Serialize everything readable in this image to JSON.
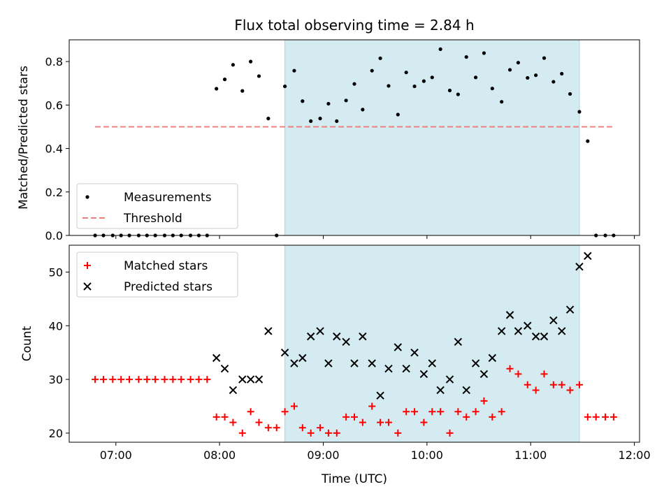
{
  "figure": {
    "title": "Flux total observing time = 2.84 h",
    "xlabel": "Time (UTC)"
  },
  "colors": {
    "band": "#d4ebf1",
    "band_edge": "#a8d5e0",
    "measurement": "#000000",
    "threshold": "#f08080",
    "matched": "#ff0000",
    "predicted": "#000000"
  },
  "chart_data": [
    {
      "type": "scatter",
      "name": "ratio-panel",
      "title": "Flux total observing time = 2.84 h",
      "ylabel": "Matched/Predicted stars",
      "xlim": [
        6.55,
        12.05
      ],
      "ylim": [
        0.0,
        0.9
      ],
      "xticks": [
        7,
        8,
        9,
        10,
        11,
        12
      ],
      "xtick_labels": [
        "07:00",
        "08:00",
        "09:00",
        "10:00",
        "11:00",
        "12:00"
      ],
      "yticks": [
        0.0,
        0.2,
        0.4,
        0.6,
        0.8
      ],
      "ytick_labels": [
        "0.0",
        "0.2",
        "0.4",
        "0.6",
        "0.8"
      ],
      "band": [
        8.63,
        11.47
      ],
      "legend": {
        "position": "lower-left",
        "entries": [
          "Measurements",
          "Threshold"
        ]
      },
      "threshold": {
        "name": "Threshold",
        "x": [
          6.8,
          11.8
        ],
        "y": 0.5
      },
      "series": [
        {
          "name": "Measurements",
          "marker": "dot",
          "x": [
            6.8,
            6.88,
            6.97,
            7.05,
            7.13,
            7.22,
            7.3,
            7.38,
            7.47,
            7.55,
            7.63,
            7.72,
            7.8,
            7.88,
            7.97,
            8.05,
            8.13,
            8.22,
            8.3,
            8.38,
            8.47,
            8.55,
            8.63,
            8.72,
            8.8,
            8.88,
            8.97,
            9.05,
            9.13,
            9.22,
            9.3,
            9.38,
            9.47,
            9.55,
            9.63,
            9.72,
            9.8,
            9.88,
            9.97,
            10.05,
            10.13,
            10.22,
            10.3,
            10.38,
            10.47,
            10.55,
            10.63,
            10.72,
            10.8,
            10.88,
            10.97,
            11.05,
            11.13,
            11.22,
            11.3,
            11.38,
            11.47,
            11.55,
            11.63,
            11.72,
            11.8
          ],
          "y": [
            0,
            0,
            0,
            0,
            0,
            0,
            0,
            0,
            0,
            0,
            0,
            0,
            0,
            0,
            0.675,
            0.718,
            0.785,
            0.665,
            0.8,
            0.733,
            0.538,
            0.0,
            0.686,
            0.758,
            0.618,
            0.526,
            0.538,
            0.606,
            0.526,
            0.621,
            0.697,
            0.579,
            0.758,
            0.815,
            0.688,
            0.556,
            0.75,
            0.686,
            0.71,
            0.727,
            0.857,
            0.667,
            0.649,
            0.821,
            0.727,
            0.839,
            0.676,
            0.615,
            0.762,
            0.795,
            0.725,
            0.737,
            0.816,
            0.707,
            0.744,
            0.651,
            0.569,
            0.434,
            0,
            0,
            0
          ]
        }
      ]
    },
    {
      "type": "scatter",
      "name": "count-panel",
      "xlabel": "Time (UTC)",
      "ylabel": "Count",
      "xlim": [
        6.55,
        12.05
      ],
      "ylim": [
        18.3,
        55.0
      ],
      "xticks": [
        7,
        8,
        9,
        10,
        11,
        12
      ],
      "xtick_labels": [
        "07:00",
        "08:00",
        "09:00",
        "10:00",
        "11:00",
        "12:00"
      ],
      "yticks": [
        20,
        30,
        40,
        50
      ],
      "ytick_labels": [
        "20",
        "30",
        "40",
        "50"
      ],
      "band": [
        8.63,
        11.47
      ],
      "legend": {
        "position": "upper-left",
        "entries": [
          "Matched stars",
          "Predicted stars"
        ]
      },
      "series": [
        {
          "name": "Matched stars",
          "marker": "plus",
          "x": [
            6.8,
            6.88,
            6.97,
            7.05,
            7.13,
            7.22,
            7.3,
            7.38,
            7.47,
            7.55,
            7.63,
            7.72,
            7.8,
            7.88,
            7.97,
            8.05,
            8.13,
            8.22,
            8.3,
            8.38,
            8.47,
            8.55,
            8.63,
            8.72,
            8.8,
            8.88,
            8.97,
            9.05,
            9.13,
            9.22,
            9.3,
            9.38,
            9.47,
            9.55,
            9.63,
            9.72,
            9.8,
            9.88,
            9.97,
            10.05,
            10.13,
            10.22,
            10.3,
            10.38,
            10.47,
            10.55,
            10.63,
            10.72,
            10.8,
            10.88,
            10.97,
            11.05,
            11.13,
            11.22,
            11.3,
            11.38,
            11.47,
            11.55,
            11.63,
            11.72,
            11.8
          ],
          "y": [
            30,
            30,
            30,
            30,
            30,
            30,
            30,
            30,
            30,
            30,
            30,
            30,
            30,
            30,
            23,
            23,
            22,
            20,
            24,
            22,
            21,
            21,
            24,
            25,
            21,
            20,
            21,
            20,
            20,
            23,
            23,
            22,
            25,
            22,
            22,
            20,
            24,
            24,
            22,
            24,
            24,
            20,
            24,
            23,
            24,
            26,
            23,
            24,
            32,
            31,
            29,
            28,
            31,
            29,
            29,
            28,
            29,
            23,
            23,
            23,
            23
          ]
        },
        {
          "name": "Predicted stars",
          "marker": "x",
          "x": [
            7.97,
            8.05,
            8.13,
            8.22,
            8.3,
            8.38,
            8.47,
            8.63,
            8.72,
            8.8,
            8.88,
            8.97,
            9.05,
            9.13,
            9.22,
            9.3,
            9.38,
            9.47,
            9.55,
            9.63,
            9.72,
            9.8,
            9.88,
            9.97,
            10.05,
            10.13,
            10.22,
            10.3,
            10.38,
            10.47,
            10.55,
            10.63,
            10.72,
            10.8,
            10.88,
            10.97,
            11.05,
            11.13,
            11.22,
            11.3,
            11.38,
            11.47,
            11.55
          ],
          "y": [
            34,
            32,
            28,
            30,
            30,
            30,
            39,
            35,
            33,
            34,
            38,
            39,
            33,
            38,
            37,
            33,
            38,
            33,
            27,
            32,
            36,
            32,
            35,
            31,
            33,
            28,
            30,
            37,
            28,
            33,
            31,
            34,
            39,
            42,
            39,
            40,
            38,
            38,
            41,
            39,
            43,
            51,
            53
          ]
        }
      ]
    }
  ]
}
